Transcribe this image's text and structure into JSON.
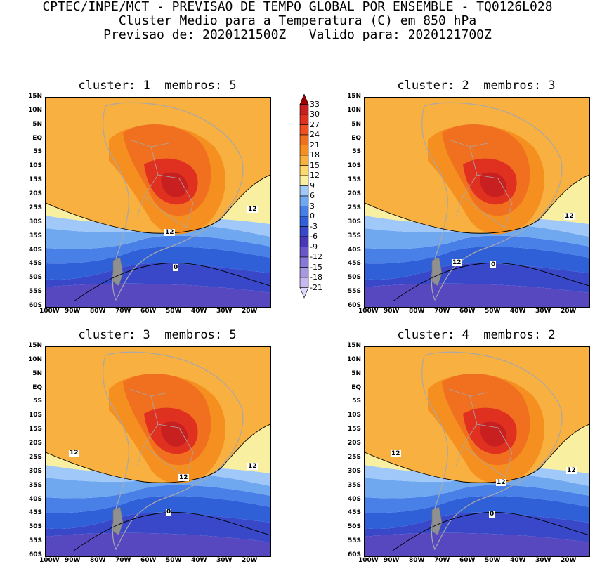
{
  "header": {
    "line1": "CPTEC/INPE/MCT - PREVISAO DE TEMPO GLOBAL POR ENSEMBLE - TQ0126L028",
    "line2": "Cluster Medio para a Temperatura (C) em 850 hPa",
    "line3": "Previsao de: 2020121500Z   Valido para: 2020121700Z"
  },
  "panels": [
    {
      "title": "cluster: 1  membros: 5",
      "contour_labels": [
        "12",
        "12",
        "0"
      ]
    },
    {
      "title": "cluster: 2  membros: 3",
      "contour_labels": [
        "12",
        "12",
        "0"
      ]
    },
    {
      "title": "cluster: 3  membros: 5",
      "contour_labels": [
        "12",
        "12",
        "12",
        "0"
      ]
    },
    {
      "title": "cluster: 4  membros: 2",
      "contour_labels": [
        "12",
        "12",
        "12",
        "0"
      ]
    }
  ],
  "axes": {
    "lat_labels": [
      "15N",
      "10N",
      "5N",
      "EQ",
      "5S",
      "10S",
      "15S",
      "20S",
      "25S",
      "30S",
      "35S",
      "40S",
      "45S",
      "50S",
      "55S",
      "60S"
    ],
    "lon_labels": [
      "100W",
      "90W",
      "80W",
      "70W",
      "60W",
      "50W",
      "40W",
      "30W",
      "20W"
    ]
  },
  "colorbar": {
    "levels": [
      "33",
      "30",
      "27",
      "24",
      "21",
      "18",
      "15",
      "12",
      "9",
      "6",
      "3",
      "0",
      "-3",
      "-6",
      "-9",
      "-12",
      "-15",
      "-18",
      "-21"
    ],
    "colors": [
      "#a00000",
      "#c82020",
      "#e03020",
      "#f05020",
      "#f07020",
      "#f59020",
      "#f8b040",
      "#fdd870",
      "#f8f0a0",
      "#a0c8f8",
      "#70a8f0",
      "#4880e8",
      "#3060d8",
      "#3848c8",
      "#4838b8",
      "#6858c8",
      "#8878d8",
      "#a898e0",
      "#c8b8f0",
      "#e0d8f8"
    ]
  },
  "colors": {
    "land_border": "#a8a8a8"
  }
}
